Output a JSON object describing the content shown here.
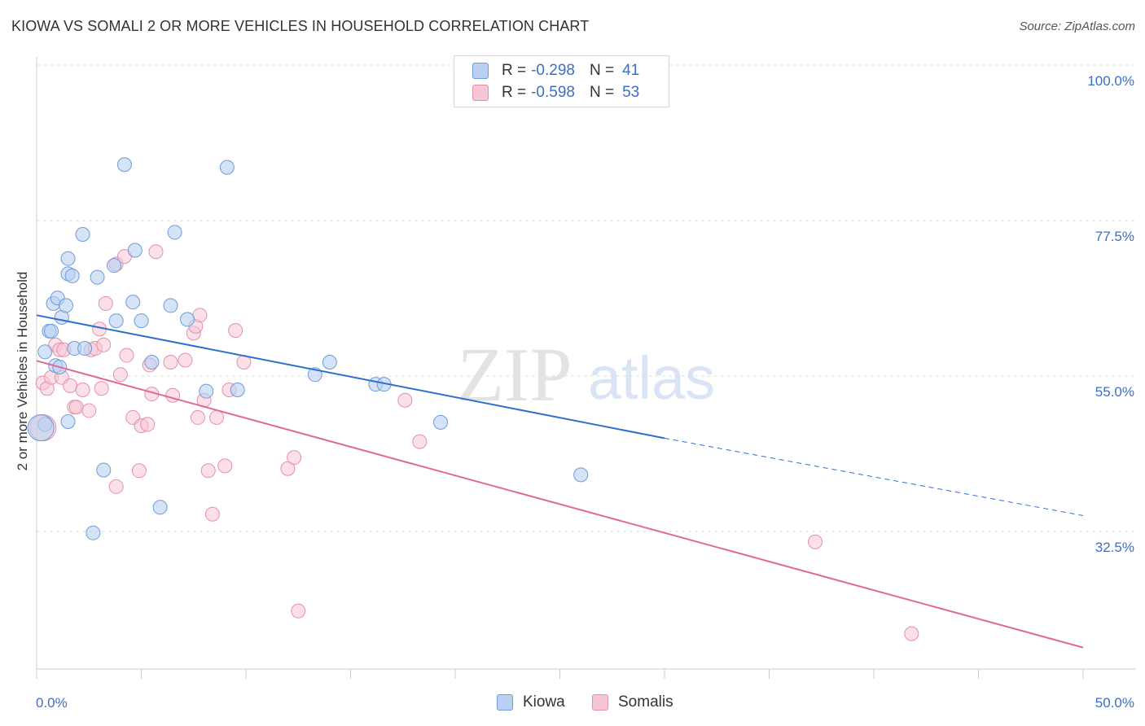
{
  "title": "KIOWA VS SOMALI 2 OR MORE VEHICLES IN HOUSEHOLD CORRELATION CHART",
  "source": "Source: ZipAtlas.com",
  "watermark": {
    "zip": "ZIP",
    "atlas": "atlas"
  },
  "legend": {
    "rows": [
      {
        "r_label": "R =",
        "r_value": "-0.298",
        "n_label": "N =",
        "n_value": "41"
      },
      {
        "r_label": "R =",
        "r_value": "-0.598",
        "n_label": "N =",
        "n_value": "53"
      }
    ]
  },
  "bottom_legend": [
    "Kiowa",
    "Somalis"
  ],
  "colors": {
    "kiowa_fill": "#b9d0f2",
    "kiowa_stroke": "#6f9bd8",
    "kiowa_line": "#2f6fcc",
    "somali_fill": "#f7c6d5",
    "somali_stroke": "#e58fab",
    "somali_line": "#e06a94",
    "tick_label": "#3a6fc4",
    "grid": "#dddddd"
  },
  "chart_data": {
    "type": "scatter",
    "title": "KIOWA VS SOMALI 2 OR MORE VEHICLES IN HOUSEHOLD CORRELATION CHART",
    "xlabel": "",
    "ylabel": "2 or more Vehicles in Household",
    "xlim": [
      0,
      50
    ],
    "ylim": [
      10,
      105
    ],
    "x_tick_labels": [
      "0.0%",
      "50.0%"
    ],
    "y_ticks": [
      32.5,
      55.0,
      77.5,
      100.0
    ],
    "y_tick_labels": [
      "32.5%",
      "55.0%",
      "77.5%",
      "100.0%"
    ],
    "grid": true,
    "legend_position": "top-center",
    "series": [
      {
        "name": "Kiowa",
        "r": -0.298,
        "n": 41,
        "trend": {
          "x": [
            0,
            30
          ],
          "y": [
            63.8,
            46.0
          ],
          "dashed_to": [
            50,
            34.8
          ]
        },
        "points": [
          [
            0.4,
            58.5
          ],
          [
            0.4,
            48
          ],
          [
            0.6,
            61.5
          ],
          [
            0.7,
            61.5
          ],
          [
            0.8,
            65.5
          ],
          [
            0.9,
            56.5
          ],
          [
            1.0,
            66.3
          ],
          [
            1.1,
            56.3
          ],
          [
            1.2,
            63.5
          ],
          [
            1.4,
            65.2
          ],
          [
            1.5,
            48.4
          ],
          [
            1.5,
            69.8
          ],
          [
            1.5,
            72.0
          ],
          [
            1.7,
            69.5
          ],
          [
            1.8,
            59.0
          ],
          [
            2.2,
            75.5
          ],
          [
            2.3,
            59.0
          ],
          [
            2.7,
            32.3
          ],
          [
            2.9,
            69.3
          ],
          [
            3.2,
            41.4
          ],
          [
            3.7,
            71.0
          ],
          [
            3.8,
            63.0
          ],
          [
            4.2,
            85.6
          ],
          [
            4.6,
            65.7
          ],
          [
            4.7,
            73.2
          ],
          [
            5.0,
            63.0
          ],
          [
            5.5,
            57.0
          ],
          [
            5.9,
            36.0
          ],
          [
            6.4,
            65.2
          ],
          [
            6.6,
            75.8
          ],
          [
            7.2,
            63.2
          ],
          [
            8.1,
            52.8
          ],
          [
            9.1,
            85.2
          ],
          [
            9.6,
            53.0
          ],
          [
            13.3,
            55.2
          ],
          [
            14.0,
            57.0
          ],
          [
            16.2,
            53.8
          ],
          [
            16.6,
            53.8
          ],
          [
            19.3,
            48.3
          ],
          [
            26.0,
            40.7
          ],
          [
            0.2,
            47.5
          ]
        ]
      },
      {
        "name": "Somalis",
        "r": -0.598,
        "n": 53,
        "trend": {
          "x": [
            0,
            50
          ],
          "y": [
            57.2,
            15.7
          ]
        },
        "points": [
          [
            0.3,
            54.0
          ],
          [
            0.3,
            47.5
          ],
          [
            0.5,
            53.2
          ],
          [
            0.7,
            54.8
          ],
          [
            0.9,
            59.5
          ],
          [
            1.1,
            58.8
          ],
          [
            1.2,
            54.8
          ],
          [
            1.3,
            58.8
          ],
          [
            1.6,
            53.6
          ],
          [
            1.8,
            50.5
          ],
          [
            1.9,
            50.5
          ],
          [
            2.2,
            53.0
          ],
          [
            2.5,
            50.0
          ],
          [
            2.6,
            58.8
          ],
          [
            2.8,
            59.0
          ],
          [
            3.0,
            61.8
          ],
          [
            3.1,
            53.2
          ],
          [
            3.2,
            59.5
          ],
          [
            3.3,
            65.5
          ],
          [
            3.8,
            71.2
          ],
          [
            3.8,
            39.0
          ],
          [
            4.0,
            55.2
          ],
          [
            4.2,
            72.3
          ],
          [
            4.3,
            58.0
          ],
          [
            4.6,
            49.0
          ],
          [
            4.9,
            41.3
          ],
          [
            5.0,
            47.8
          ],
          [
            5.3,
            48.0
          ],
          [
            5.4,
            56.6
          ],
          [
            5.5,
            52.4
          ],
          [
            5.7,
            73.0
          ],
          [
            6.4,
            57.0
          ],
          [
            6.5,
            52.2
          ],
          [
            7.1,
            57.3
          ],
          [
            7.5,
            61.2
          ],
          [
            7.6,
            62.2
          ],
          [
            7.7,
            49.0
          ],
          [
            7.8,
            63.8
          ],
          [
            8.0,
            51.5
          ],
          [
            8.2,
            41.3
          ],
          [
            8.4,
            35.0
          ],
          [
            8.6,
            49.0
          ],
          [
            9.0,
            42.0
          ],
          [
            9.2,
            53.0
          ],
          [
            9.5,
            61.6
          ],
          [
            9.9,
            57.0
          ],
          [
            12.0,
            41.6
          ],
          [
            12.3,
            43.2
          ],
          [
            12.5,
            21.0
          ],
          [
            17.6,
            51.5
          ],
          [
            18.3,
            45.5
          ],
          [
            37.2,
            31.0
          ],
          [
            41.8,
            17.7
          ]
        ]
      }
    ]
  }
}
